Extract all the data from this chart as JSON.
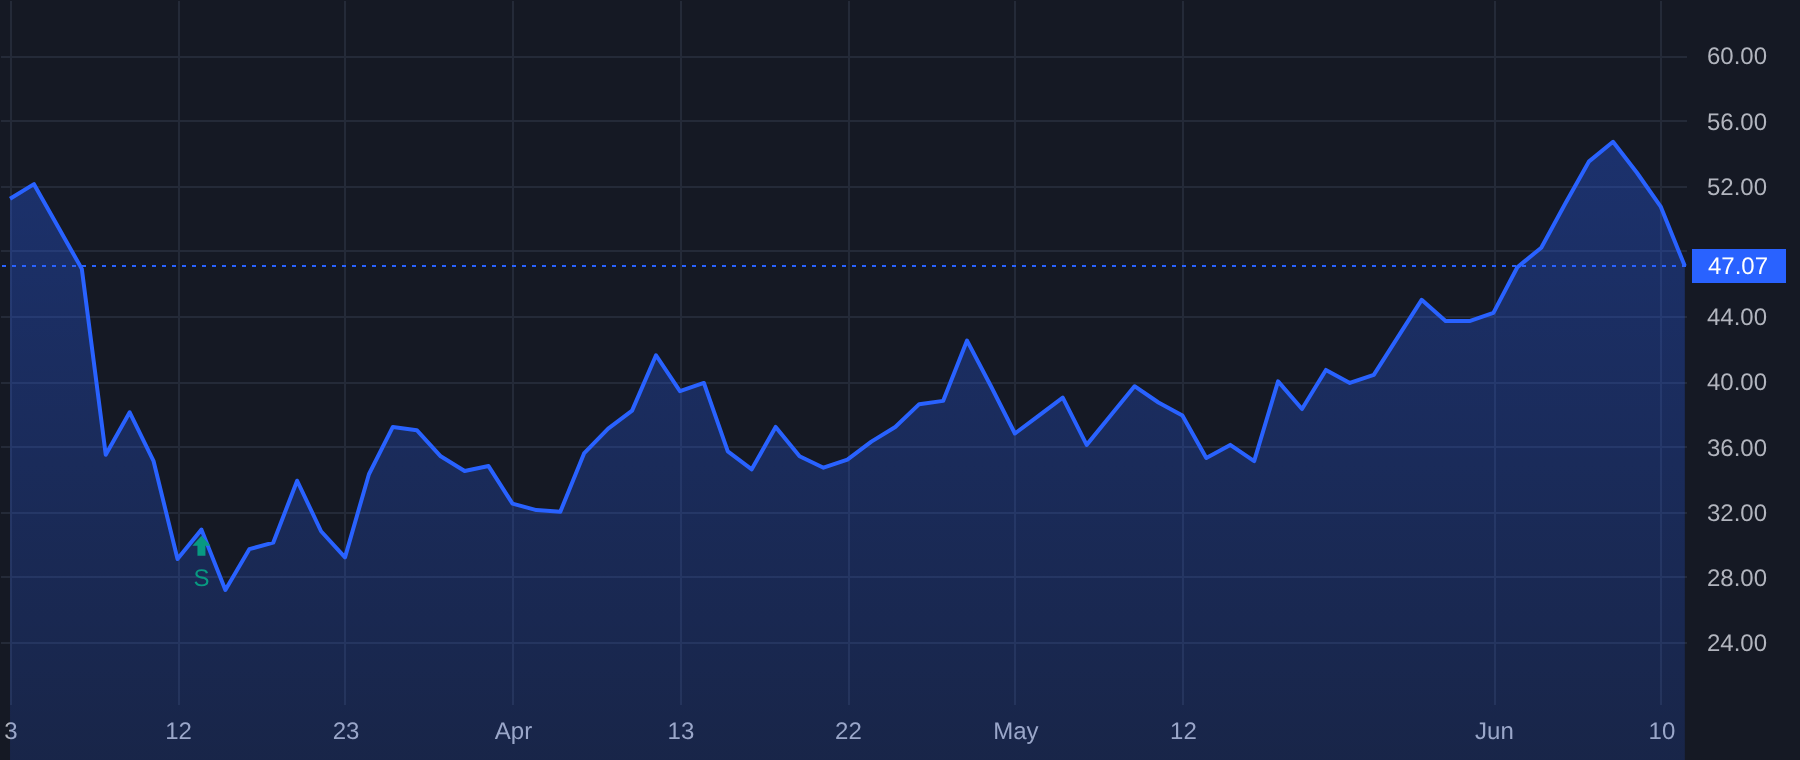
{
  "chart_data": {
    "type": "area",
    "categories": [
      "3",
      null,
      null,
      null,
      null,
      null,
      null,
      "12",
      null,
      null,
      null,
      null,
      null,
      null,
      "23",
      null,
      null,
      null,
      null,
      null,
      null,
      "Apr",
      null,
      null,
      null,
      null,
      null,
      null,
      "13",
      null,
      null,
      null,
      null,
      null,
      null,
      "22",
      null,
      null,
      null,
      null,
      null,
      null,
      "May",
      null,
      null,
      null,
      null,
      null,
      null,
      "12",
      null,
      null,
      null,
      null,
      null,
      null,
      null,
      null,
      null,
      null,
      null,
      null,
      "Jun",
      null,
      null,
      null,
      null,
      null,
      null,
      "10",
      null
    ],
    "series": [
      {
        "color": "#2962ff",
        "values": [
          51.2,
          52.1,
          49.5,
          46.9,
          35.5,
          38.1,
          35.1,
          29.1,
          30.9,
          27.2,
          29.7,
          30.1,
          33.9,
          30.8,
          29.2,
          34.3,
          37.2,
          37.0,
          35.4,
          34.5,
          34.8,
          32.5,
          32.1,
          32.0,
          35.6,
          37.1,
          38.2,
          41.6,
          39.4,
          39.9,
          35.7,
          34.6,
          37.2,
          35.4,
          34.7,
          35.2,
          36.3,
          37.2,
          38.6,
          38.8,
          42.5,
          39.7,
          36.8,
          37.9,
          39.0,
          36.1,
          37.9,
          39.7,
          38.7,
          37.9,
          35.3,
          36.1,
          35.1,
          40.0,
          38.3,
          40.7,
          39.9,
          40.4,
          42.7,
          45.0,
          43.7,
          43.7,
          44.2,
          47.0,
          48.2,
          50.9,
          53.5,
          54.7,
          52.8,
          50.7,
          47.07
        ]
      }
    ],
    "ylim": [
      20.2,
      63.4
    ],
    "yticks": [
      {
        "value": 24,
        "label": "24.00"
      },
      {
        "value": 28,
        "label": "28.00"
      },
      {
        "value": 32,
        "label": "32.00"
      },
      {
        "value": 36,
        "label": "36.00"
      },
      {
        "value": 40,
        "label": "40.00"
      },
      {
        "value": 44,
        "label": "44.00"
      },
      {
        "value": 48,
        "label": null
      },
      {
        "value": 52,
        "label": "52.00"
      },
      {
        "value": 56,
        "label": "56.00"
      },
      {
        "value": 60,
        "label": "60.00"
      }
    ],
    "grid": true,
    "ref_lines": [
      {
        "axis": "y",
        "value": 47.07,
        "label": "47.07",
        "color": "#2962ff",
        "line_style": "dotted"
      }
    ],
    "annotations": [
      "S"
    ]
  }
}
